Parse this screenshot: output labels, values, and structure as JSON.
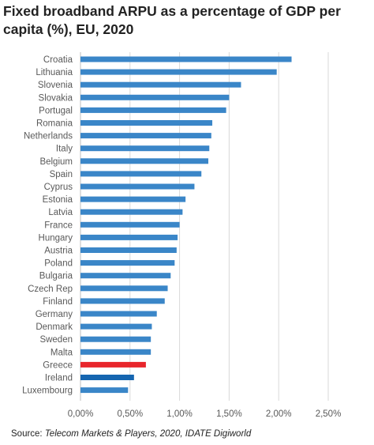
{
  "title": "Fixed broadband ARPU as a percentage of GDP per capita (%), EU, 2020",
  "source": {
    "prefix": "Source: ",
    "text": "Telecom Markets & Players, 2020, IDATE Digiworld"
  },
  "colors": {
    "default_bar": "#3a86c8",
    "greece": "#e8262c",
    "ireland": "#1565b0",
    "gridline": "#d9d9d9",
    "axis_text": "#595959"
  },
  "chart_data": {
    "type": "bar",
    "orientation": "horizontal",
    "categories": [
      "Croatia",
      "Lithuania",
      "Slovenia",
      "Slovakia",
      "Portugal",
      "Romania",
      "Netherlands",
      "Italy",
      "Belgium",
      "Spain",
      "Cyprus",
      "Estonia",
      "Latvia",
      "France",
      "Hungary",
      "Austria",
      "Poland",
      "Bulgaria",
      "Czech Rep",
      "Finland",
      "Germany",
      "Denmark",
      "Sweden",
      "Malta",
      "Greece",
      "Ireland",
      "Luxembourg"
    ],
    "values": [
      2.13,
      1.98,
      1.62,
      1.5,
      1.47,
      1.33,
      1.32,
      1.3,
      1.29,
      1.22,
      1.15,
      1.06,
      1.03,
      1.0,
      0.98,
      0.97,
      0.95,
      0.91,
      0.88,
      0.85,
      0.77,
      0.72,
      0.71,
      0.71,
      0.66,
      0.54,
      0.48
    ],
    "highlight": {
      "Greece": "greece",
      "Ireland": "ireland"
    },
    "xlim": [
      0,
      2.5
    ],
    "xticks": [
      0,
      0.5,
      1.0,
      1.5,
      2.0,
      2.5
    ],
    "xtick_labels": [
      "0,00%",
      "0,50%",
      "1,00%",
      "1,50%",
      "2,00%",
      "2,50%"
    ],
    "xlabel": "",
    "ylabel": "",
    "grid": "vertical"
  }
}
